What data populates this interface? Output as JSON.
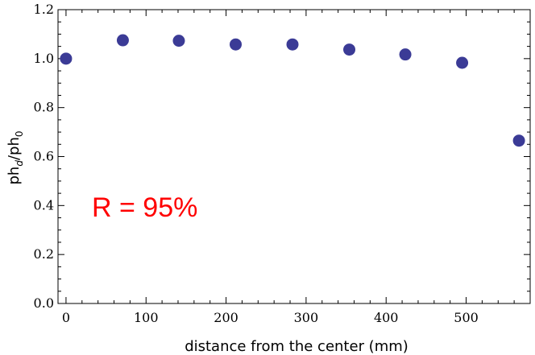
{
  "chart_data": {
    "type": "scatter",
    "xlabel": "distance from the center (mm)",
    "ylabel": {
      "base1": "ph",
      "sub1": "d",
      "slash": "/",
      "base2": "ph",
      "sub2": "0"
    },
    "xlim": [
      -10,
      580
    ],
    "ylim": [
      0.0,
      1.2
    ],
    "x_ticks": [
      0,
      100,
      200,
      300,
      400,
      500
    ],
    "x_tick_labels": [
      "0",
      "100",
      "200",
      "300",
      "400",
      "500"
    ],
    "y_ticks": [
      0.0,
      0.2,
      0.4,
      0.6,
      0.8,
      1.0,
      1.2
    ],
    "y_tick_labels": [
      "0.0",
      "0.2",
      "0.4",
      "0.6",
      "0.8",
      "1.0",
      "1.2"
    ],
    "grid": false,
    "series": [
      {
        "color": "#3b3b96",
        "points": [
          {
            "x": 0,
            "y": 1.0
          },
          {
            "x": 71,
            "y": 1.075
          },
          {
            "x": 141,
            "y": 1.073
          },
          {
            "x": 212,
            "y": 1.058
          },
          {
            "x": 283,
            "y": 1.058
          },
          {
            "x": 354,
            "y": 1.037
          },
          {
            "x": 424,
            "y": 1.017
          },
          {
            "x": 495,
            "y": 0.983
          },
          {
            "x": 566,
            "y": 0.665
          }
        ]
      }
    ],
    "annotation": {
      "text": "R = 95%",
      "color": "#ff0000"
    }
  }
}
